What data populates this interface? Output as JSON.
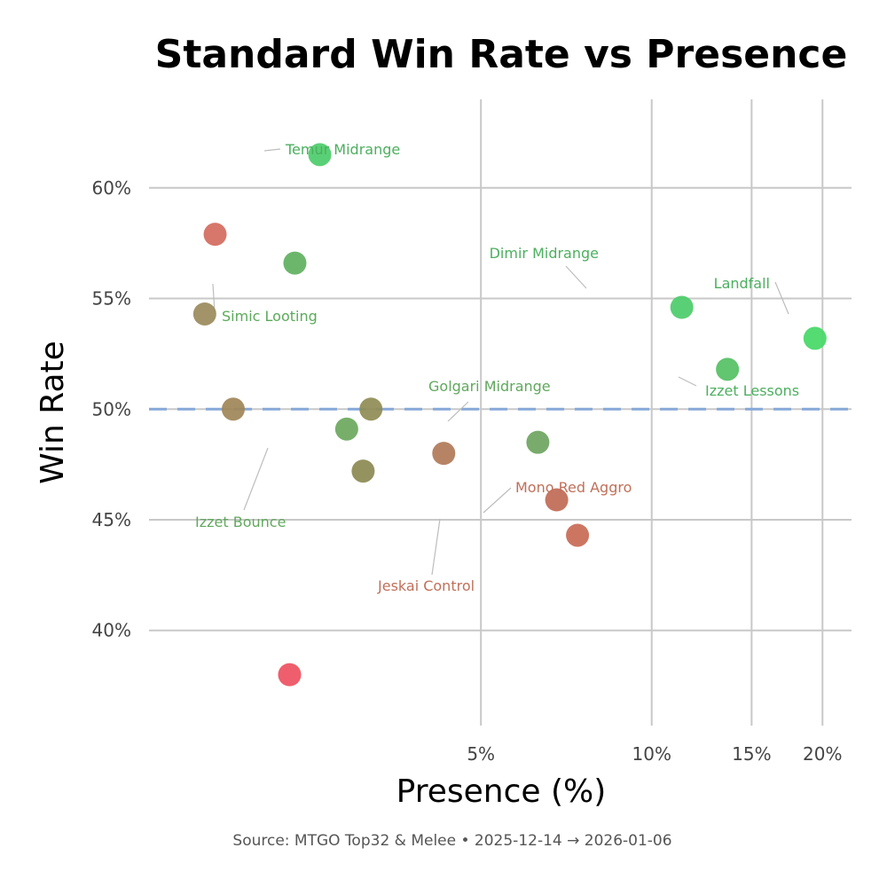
{
  "chart_data": {
    "type": "scatter",
    "title": "Standard Win Rate vs Presence",
    "xlabel": "Presence (%)",
    "ylabel": "Win Rate",
    "x_scale": "log",
    "xlim": [
      1.3,
      22.5
    ],
    "ylim": [
      35.7,
      64
    ],
    "x_ticks": [
      {
        "value": 5,
        "label": "5%"
      },
      {
        "value": 10,
        "label": "10%"
      },
      {
        "value": 15,
        "label": "15%"
      },
      {
        "value": 20,
        "label": "20%"
      }
    ],
    "y_ticks": [
      {
        "value": 40,
        "label": "40%"
      },
      {
        "value": 45,
        "label": "45%"
      },
      {
        "value": 50,
        "label": "50%"
      },
      {
        "value": 55,
        "label": "55%"
      },
      {
        "value": 60,
        "label": "60%"
      }
    ],
    "reference_line": {
      "y": 50,
      "color": "#86a8d8",
      "style": "dashed"
    },
    "points": [
      {
        "x": 2.6,
        "y": 61.5,
        "color": "#4ccc6a",
        "label": "Temur Midrange",
        "label_color": "#4caf5f"
      },
      {
        "x": 1.7,
        "y": 57.9,
        "color": "#d46a5e",
        "label": ""
      },
      {
        "x": 2.35,
        "y": 56.6,
        "color": "#5fb05f",
        "label": "Simic Looting",
        "label_color": "#5aaa5a"
      },
      {
        "x": 1.63,
        "y": 54.3,
        "color": "#9b8a5c",
        "label": ""
      },
      {
        "x": 1.83,
        "y": 50.0,
        "color": "#a08558",
        "label": ""
      },
      {
        "x": 3.2,
        "y": 50.0,
        "color": "#8f8c55",
        "label": ""
      },
      {
        "x": 2.9,
        "y": 49.1,
        "color": "#6ba85d",
        "label": "Izzet Bounce",
        "label_color": "#62a85e"
      },
      {
        "x": 3.1,
        "y": 47.2,
        "color": "#8b8a52",
        "label": ""
      },
      {
        "x": 4.3,
        "y": 48.0,
        "color": "#b07a58",
        "label": ""
      },
      {
        "x": 6.3,
        "y": 48.5,
        "color": "#6ea45f",
        "label": "Golgari Midrange",
        "label_color": "#5fa85c"
      },
      {
        "x": 6.8,
        "y": 45.9,
        "color": "#c06a55",
        "label": "Jeskai Control",
        "label_color": "#c0705a"
      },
      {
        "x": 7.4,
        "y": 44.3,
        "color": "#c86a55",
        "label": "Mono Red Aggro",
        "label_color": "#c0705a"
      },
      {
        "x": 2.3,
        "y": 38.0,
        "color": "#ee5060",
        "label": ""
      },
      {
        "x": 11.3,
        "y": 54.6,
        "color": "#4ccc6a",
        "label": "Dimir Midrange",
        "label_color": "#4caf5f"
      },
      {
        "x": 13.6,
        "y": 51.8,
        "color": "#55c063",
        "label": "Izzet Lessons",
        "label_color": "#4caf5f"
      },
      {
        "x": 19.4,
        "y": 53.2,
        "color": "#45d866",
        "label": "Landfall",
        "label_color": "#4caf5f"
      }
    ],
    "caption": "Source: MTGO Top32 & Melee  •  2025-12-14 → 2026-01-06"
  }
}
